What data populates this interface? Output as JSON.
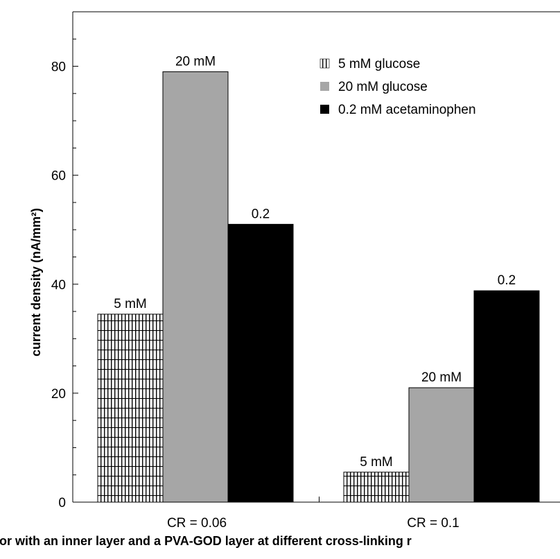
{
  "chart_data": {
    "type": "bar",
    "categories": [
      "CR = 0.06",
      "CR = 0.1"
    ],
    "series": [
      {
        "name": "5 mM glucose",
        "values": [
          34.5,
          5.5
        ],
        "labels": [
          "5 mM",
          "5 mM"
        ],
        "color": "#000000",
        "pattern": "grid"
      },
      {
        "name": "20 mM glucose",
        "values": [
          79,
          21
        ],
        "labels": [
          "20 mM",
          "20 mM"
        ],
        "color": "#a6a6a6"
      },
      {
        "name": "0.2 mM acetaminophen",
        "values": [
          51,
          38.8
        ],
        "labels": [
          "0.2",
          "0.2"
        ],
        "color": "#000000"
      }
    ],
    "ylabel": "current density (nA/mm²)",
    "ylim": [
      0,
      90
    ],
    "yticks": [
      "0",
      "20",
      "40",
      "60",
      "80"
    ],
    "grid": false,
    "legend": "top-right",
    "caption": "nsor with an inner layer and a PVA-GOD layer at different cross-linking r"
  }
}
